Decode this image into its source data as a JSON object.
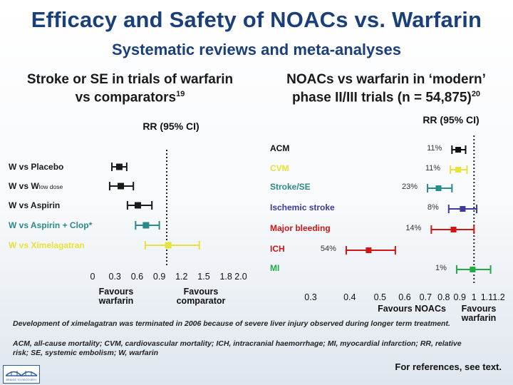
{
  "slide": {
    "title": "Efficacy and Safety of NOACs vs. Warfarin",
    "subtitle": "Systematic reviews and meta-analyses",
    "footnote_1": "Development of ximelagatran was terminated in 2006 because of severe liver injury observed during longer term treatment.",
    "footnote_2": "ACM, all-cause mortality; CVM, cardiovascular mortality; ICH, intracranial haemorrhage; MI, myocardial infarction; RR, relative risk; SE, systemic embolism; W, warfarin",
    "references": "For references, see text.",
    "logo_text": "BRIDGE TO RECOVERY"
  },
  "chart_data": [
    {
      "type": "forest",
      "title_line1": "Stroke or SE in trials of warfarin",
      "title_line2": "vs comparators",
      "title_ref": "19",
      "axis_label": "RR (95% CI)",
      "xticks": [
        "0",
        "0.3",
        "0.6",
        "0.9",
        "1.2",
        "1.5",
        "1.8",
        "2.0"
      ],
      "xlim": [
        0,
        2.0
      ],
      "reference_line": 1.0,
      "xlabel_left": [
        "Favours",
        "warfarin"
      ],
      "xlabel_right": [
        "Favours",
        "comparator"
      ],
      "rows": [
        {
          "label": "W vs Placebo",
          "label_sub": "",
          "color": "#1a1a1a",
          "rr": 0.36,
          "lo": 0.26,
          "hi": 0.46
        },
        {
          "label": "W vs W",
          "label_sub": "low dose",
          "color": "#1a1a1a",
          "rr": 0.38,
          "lo": 0.23,
          "hi": 0.55
        },
        {
          "label": "W vs Aspirin",
          "label_sub": "",
          "color": "#1a1a1a",
          "rr": 0.61,
          "lo": 0.47,
          "hi": 0.8
        },
        {
          "label": "W vs Aspirin + Clop*",
          "label_sub": "",
          "color": "#2b8a8a",
          "rr": 0.72,
          "lo": 0.58,
          "hi": 0.9
        },
        {
          "label": "W vs Ximelagatran",
          "label_sub": "",
          "color": "#e8e23a",
          "rr": 1.02,
          "lo": 0.71,
          "hi": 1.44
        }
      ]
    },
    {
      "type": "forest",
      "title_line1": "NOACs vs warfarin in ‘modern’",
      "title_line2": "phase II/III trials (n = 54,875)",
      "title_ref": "20",
      "axis_label": "RR (95% CI)",
      "xticks": [
        "0.3",
        "0.4",
        "0.5",
        "0.6",
        "0.7",
        "0.8",
        "0.9",
        "1",
        "1.1",
        "1.2"
      ],
      "x_scale": "log",
      "reference_line": 1.0,
      "xlabel_left": [
        "Favours NOACs"
      ],
      "xlabel_right": [
        "Favours",
        "warfarin"
      ],
      "rows": [
        {
          "label": "ACM",
          "color": "#111111",
          "pct": "11%",
          "rr": 0.89,
          "lo": 0.85,
          "hi": 0.94
        },
        {
          "label": "CVM",
          "color": "#e8e23a",
          "pct": "11%",
          "rr": 0.89,
          "lo": 0.84,
          "hi": 0.95
        },
        {
          "label": "Stroke/SE",
          "color": "#2b8a8a",
          "pct": "23%",
          "rr": 0.77,
          "lo": 0.71,
          "hi": 0.85
        },
        {
          "label": "Ischemic stroke",
          "color": "#3a3aa0",
          "pct": "8%",
          "rr": 0.92,
          "lo": 0.83,
          "hi": 1.02
        },
        {
          "label": "Major bleeding",
          "color": "#d01515",
          "pct": "14%",
          "rr": 0.86,
          "lo": 0.73,
          "hi": 1.0
        },
        {
          "label": "ICH",
          "color": "#d01515",
          "pct": "54%",
          "rr": 0.46,
          "lo": 0.39,
          "hi": 0.56
        },
        {
          "label": "MI",
          "color": "#22aa44",
          "pct": "1%",
          "rr": 0.99,
          "lo": 0.88,
          "hi": 1.13
        }
      ]
    }
  ]
}
